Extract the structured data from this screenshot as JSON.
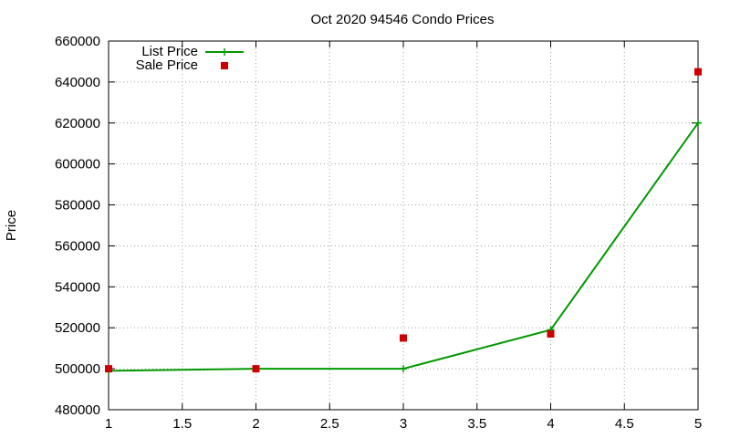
{
  "chart_data": {
    "type": "line",
    "title": "Oct 2020 94546 Condo Prices",
    "xlabel": "",
    "ylabel": "Price",
    "xlim": [
      1,
      5
    ],
    "ylim": [
      480000,
      660000
    ],
    "x_ticks": [
      1,
      1.5,
      2,
      2.5,
      3,
      3.5,
      4,
      4.5,
      5
    ],
    "y_ticks": [
      480000,
      500000,
      520000,
      540000,
      560000,
      580000,
      600000,
      620000,
      640000,
      660000
    ],
    "grid": true,
    "legend_position": "top-left",
    "series": [
      {
        "name": "List Price",
        "style": "line with cross markers",
        "color": "#009900",
        "x": [
          1,
          2,
          3,
          4,
          5
        ],
        "values": [
          499000,
          500000,
          500000,
          519000,
          620000
        ]
      },
      {
        "name": "Sale Price",
        "style": "square markers",
        "color": "#cc0000",
        "x": [
          1,
          2,
          3,
          4,
          5
        ],
        "values": [
          500000,
          500000,
          515000,
          517000,
          645000
        ]
      }
    ]
  }
}
